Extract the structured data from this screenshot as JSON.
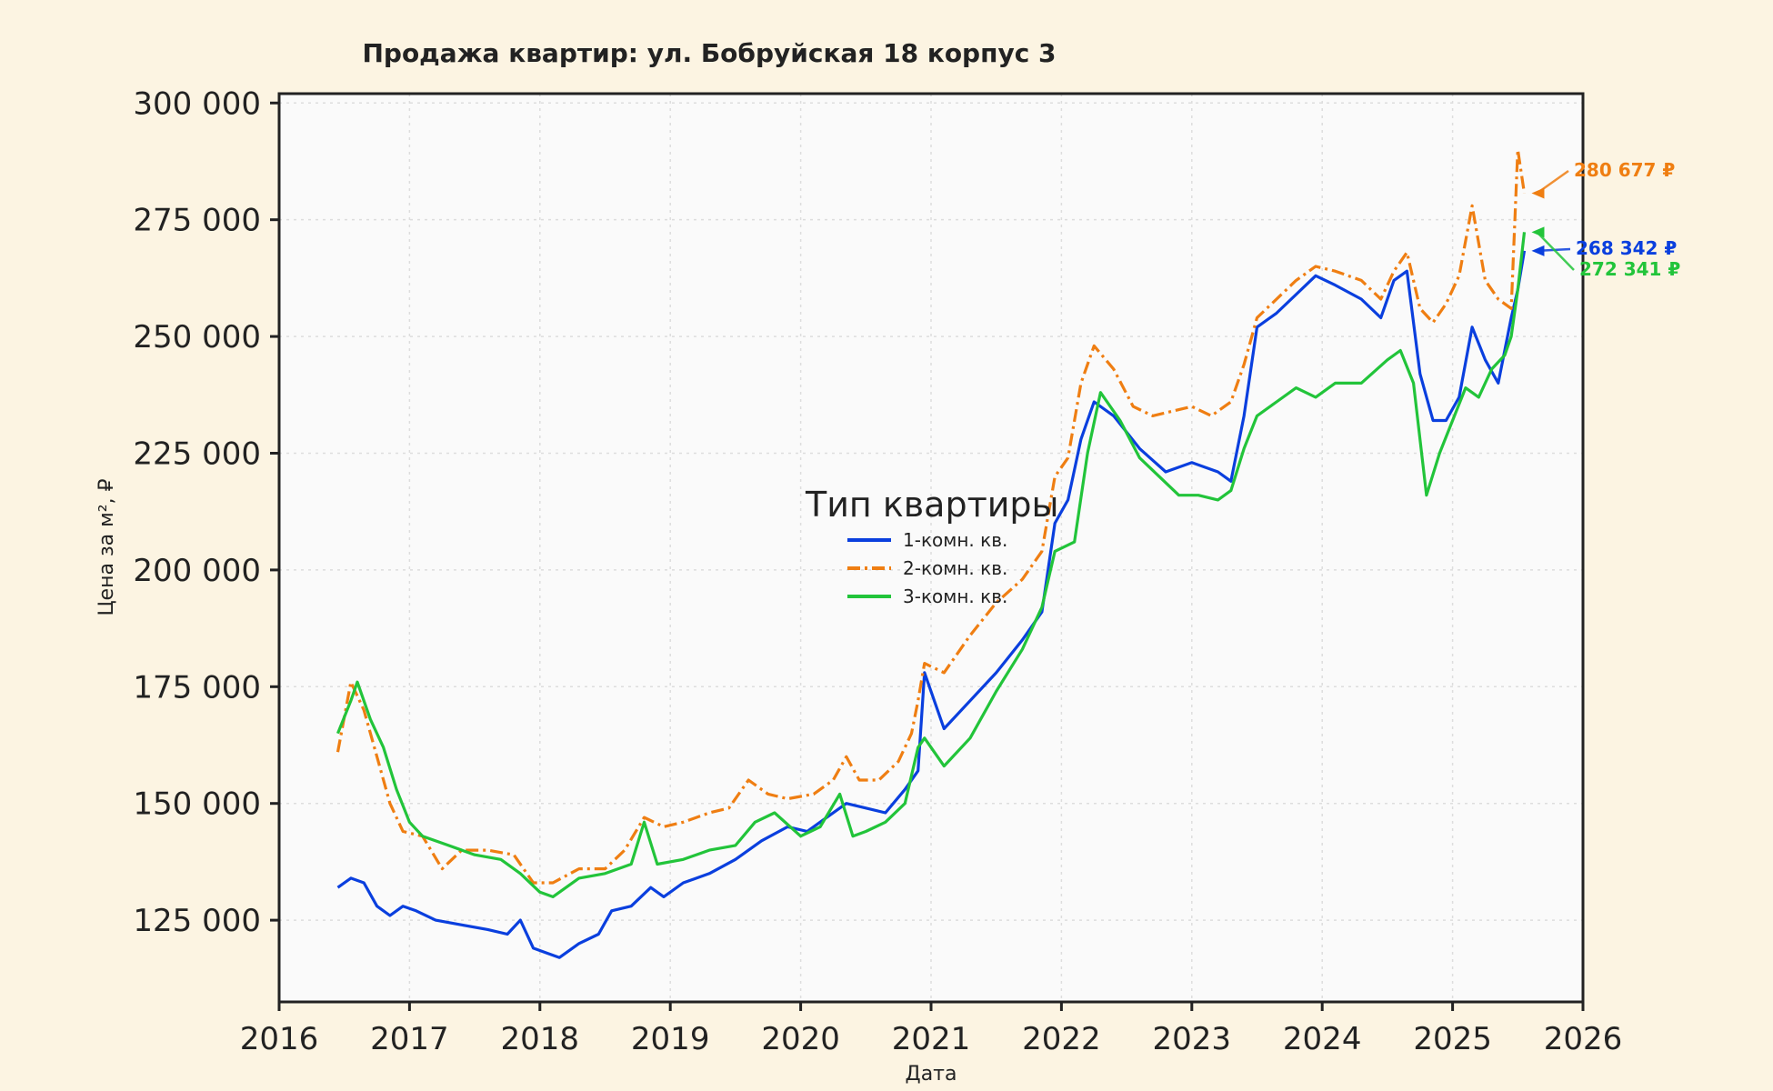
{
  "chart_data": {
    "type": "line",
    "title": "Продажа квартир: ул. Бобруйская 18 корпус 3",
    "xlabel": "Дата",
    "ylabel": "Цена за м², ₽",
    "xlim": [
      2016,
      2026
    ],
    "ylim": [
      107500,
      302000
    ],
    "x_ticks": [
      "2016",
      "2017",
      "2018",
      "2019",
      "2020",
      "2021",
      "2022",
      "2023",
      "2024",
      "2025",
      "2026"
    ],
    "y_ticks": [
      "125 000",
      "150 000",
      "175 000",
      "200 000",
      "225 000",
      "250 000",
      "275 000",
      "300 000"
    ],
    "grid": true,
    "legend": {
      "title": "Тип квартиры",
      "placement": "center"
    },
    "series": [
      {
        "name": "1-комн. кв.",
        "color": "#0a3fde",
        "dash": "solid",
        "x": [
          2016.45,
          2016.55,
          2016.65,
          2016.75,
          2016.85,
          2016.95,
          2017.05,
          2017.2,
          2017.4,
          2017.6,
          2017.75,
          2017.85,
          2017.95,
          2018.05,
          2018.15,
          2018.3,
          2018.45,
          2018.55,
          2018.7,
          2018.85,
          2018.95,
          2019.1,
          2019.3,
          2019.5,
          2019.7,
          2019.9,
          2020.05,
          2020.2,
          2020.35,
          2020.5,
          2020.65,
          2020.8,
          2020.9,
          2020.95,
          2021.1,
          2021.3,
          2021.5,
          2021.7,
          2021.85,
          2021.95,
          2022.05,
          2022.15,
          2022.25,
          2022.4,
          2022.6,
          2022.8,
          2023.0,
          2023.2,
          2023.3,
          2023.4,
          2023.5,
          2023.65,
          2023.8,
          2023.95,
          2024.1,
          2024.3,
          2024.45,
          2024.55,
          2024.65,
          2024.75,
          2024.85,
          2024.95,
          2025.05,
          2025.15,
          2025.25,
          2025.35,
          2025.45,
          2025.5,
          2025.55
        ],
        "values": [
          132000,
          134000,
          133000,
          128000,
          126000,
          128000,
          127000,
          125000,
          124000,
          123000,
          122000,
          125000,
          119000,
          118000,
          117000,
          120000,
          122000,
          127000,
          128000,
          132000,
          130000,
          133000,
          135000,
          138000,
          142000,
          145000,
          144000,
          147000,
          150000,
          149000,
          148000,
          153000,
          157000,
          178000,
          166000,
          172000,
          178000,
          185000,
          191000,
          210000,
          215000,
          228000,
          236000,
          233000,
          226000,
          221000,
          223000,
          221000,
          219000,
          233000,
          252000,
          255000,
          259000,
          263000,
          261000,
          258000,
          254000,
          262000,
          264000,
          242000,
          232000,
          232000,
          237000,
          252000,
          245000,
          240000,
          254000,
          260000,
          268342
        ]
      },
      {
        "name": "2-комн. кв.",
        "color": "#ef7e12",
        "dash": "dashdot",
        "x": [
          2016.45,
          2016.55,
          2016.65,
          2016.75,
          2016.85,
          2016.95,
          2017.1,
          2017.25,
          2017.4,
          2017.6,
          2017.8,
          2017.95,
          2018.1,
          2018.3,
          2018.5,
          2018.65,
          2018.8,
          2018.95,
          2019.1,
          2019.3,
          2019.45,
          2019.6,
          2019.75,
          2019.9,
          2020.1,
          2020.25,
          2020.35,
          2020.45,
          2020.6,
          2020.75,
          2020.85,
          2020.9,
          2020.95,
          2021.1,
          2021.3,
          2021.5,
          2021.7,
          2021.85,
          2021.95,
          2022.05,
          2022.15,
          2022.25,
          2022.4,
          2022.55,
          2022.7,
          2022.85,
          2023.0,
          2023.15,
          2023.3,
          2023.4,
          2023.5,
          2023.65,
          2023.8,
          2023.95,
          2024.1,
          2024.3,
          2024.45,
          2024.55,
          2024.65,
          2024.75,
          2024.85,
          2024.95,
          2025.05,
          2025.15,
          2025.25,
          2025.35,
          2025.45,
          2025.5,
          2025.55
        ],
        "values": [
          161000,
          176000,
          170000,
          160000,
          150000,
          144000,
          143000,
          136000,
          140000,
          140000,
          139000,
          133000,
          133000,
          136000,
          136000,
          140000,
          147000,
          145000,
          146000,
          148000,
          149000,
          155000,
          152000,
          151000,
          152000,
          155000,
          160000,
          155000,
          155000,
          159000,
          165000,
          172000,
          180000,
          178000,
          186000,
          193000,
          198000,
          204000,
          220000,
          224000,
          240000,
          248000,
          243000,
          235000,
          233000,
          234000,
          235000,
          233000,
          236000,
          244000,
          254000,
          258000,
          262000,
          265000,
          264000,
          262000,
          258000,
          264000,
          268000,
          256000,
          253000,
          257000,
          263000,
          278000,
          262000,
          258000,
          256000,
          290000,
          280677
        ]
      },
      {
        "name": "3-комн. кв.",
        "color": "#22c43a",
        "dash": "solid",
        "x": [
          2016.45,
          2016.55,
          2016.6,
          2016.7,
          2016.8,
          2016.9,
          2017.0,
          2017.1,
          2017.3,
          2017.5,
          2017.7,
          2017.85,
          2018.0,
          2018.1,
          2018.3,
          2018.5,
          2018.7,
          2018.8,
          2018.9,
          2019.1,
          2019.3,
          2019.5,
          2019.65,
          2019.8,
          2020.0,
          2020.15,
          2020.3,
          2020.4,
          2020.5,
          2020.65,
          2020.8,
          2020.9,
          2020.95,
          2021.1,
          2021.3,
          2021.5,
          2021.7,
          2021.85,
          2021.95,
          2022.1,
          2022.2,
          2022.3,
          2022.45,
          2022.6,
          2022.75,
          2022.9,
          2023.05,
          2023.2,
          2023.3,
          2023.4,
          2023.5,
          2023.65,
          2023.8,
          2023.95,
          2024.1,
          2024.3,
          2024.5,
          2024.6,
          2024.7,
          2024.8,
          2024.9,
          2025.0,
          2025.1,
          2025.2,
          2025.3,
          2025.4,
          2025.45,
          2025.5,
          2025.55
        ],
        "values": [
          165000,
          172000,
          176000,
          168000,
          162000,
          153000,
          146000,
          143000,
          141000,
          139000,
          138000,
          135000,
          131000,
          130000,
          134000,
          135000,
          137000,
          146000,
          137000,
          138000,
          140000,
          141000,
          146000,
          148000,
          143000,
          145000,
          152000,
          143000,
          144000,
          146000,
          150000,
          162000,
          164000,
          158000,
          164000,
          174000,
          183000,
          192000,
          204000,
          206000,
          225000,
          238000,
          232000,
          224000,
          220000,
          216000,
          216000,
          215000,
          217000,
          226000,
          233000,
          236000,
          239000,
          237000,
          240000,
          240000,
          245000,
          247000,
          240000,
          216000,
          225000,
          232000,
          239000,
          237000,
          243000,
          246000,
          250000,
          260000,
          272341
        ]
      }
    ],
    "annotations": [
      {
        "text": "280 677 ₽",
        "series": 1
      },
      {
        "text": "268 342 ₽",
        "series": 0
      },
      {
        "text": "272 341 ₽",
        "series": 2
      }
    ]
  }
}
